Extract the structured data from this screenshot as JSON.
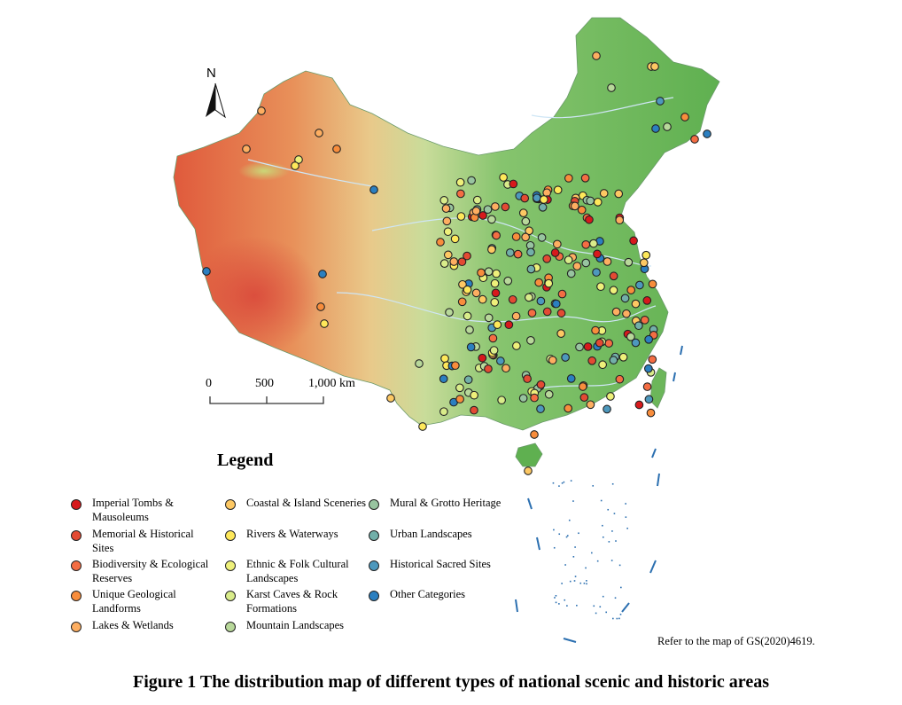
{
  "north_arrow": {
    "label": "N"
  },
  "scale_bar": {
    "labels": [
      "0",
      "500",
      "1,000 km"
    ]
  },
  "legend": {
    "title": "Legend",
    "items": [
      {
        "label": "Imperial Tombs & Mausoleums",
        "color": "#d7191c"
      },
      {
        "label": "Memorial & Historical Sites",
        "color": "#e34a33"
      },
      {
        "label": "Biodiversity & Ecological Reserves",
        "color": "#f46d43"
      },
      {
        "label": "Unique Geological Landforms",
        "color": "#f88d3c"
      },
      {
        "label": "Lakes & Wetlands",
        "color": "#fdae61"
      },
      {
        "label": "Coastal & Island Sceneries",
        "color": "#fdc863"
      },
      {
        "label": "Rivers & Waterways",
        "color": "#fee85a"
      },
      {
        "label": "Ethnic & Folk Cultural Landscapes",
        "color": "#eef07a"
      },
      {
        "label": "Karst Caves & Rock Formations",
        "color": "#d9ec8a"
      },
      {
        "label": "Mountain Landscapes",
        "color": "#b8d89a"
      },
      {
        "label": "Mural & Grotto Heritage",
        "color": "#98c4a0"
      },
      {
        "label": "Urban Landscapes",
        "color": "#72afa9"
      },
      {
        "label": "Historical Sacred Sites",
        "color": "#4d98bd"
      },
      {
        "label": "Other Categories",
        "color": "#2b7fc0"
      }
    ]
  },
  "reference_note": "Refer to the map of GS(2020)4619.",
  "caption": "Figure 1  The distribution map of different types of national scenic and historic areas"
}
